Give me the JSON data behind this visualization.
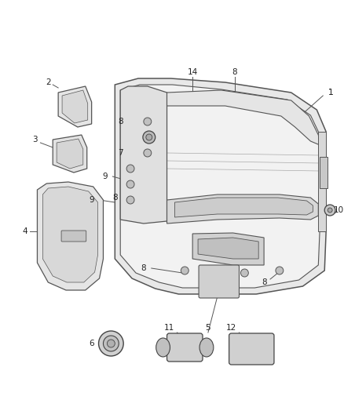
{
  "background_color": "#ffffff",
  "fig_width": 4.38,
  "fig_height": 5.33,
  "dpi": 100,
  "line_color": "#555555",
  "text_color": "#222222",
  "font_size": 7.5
}
